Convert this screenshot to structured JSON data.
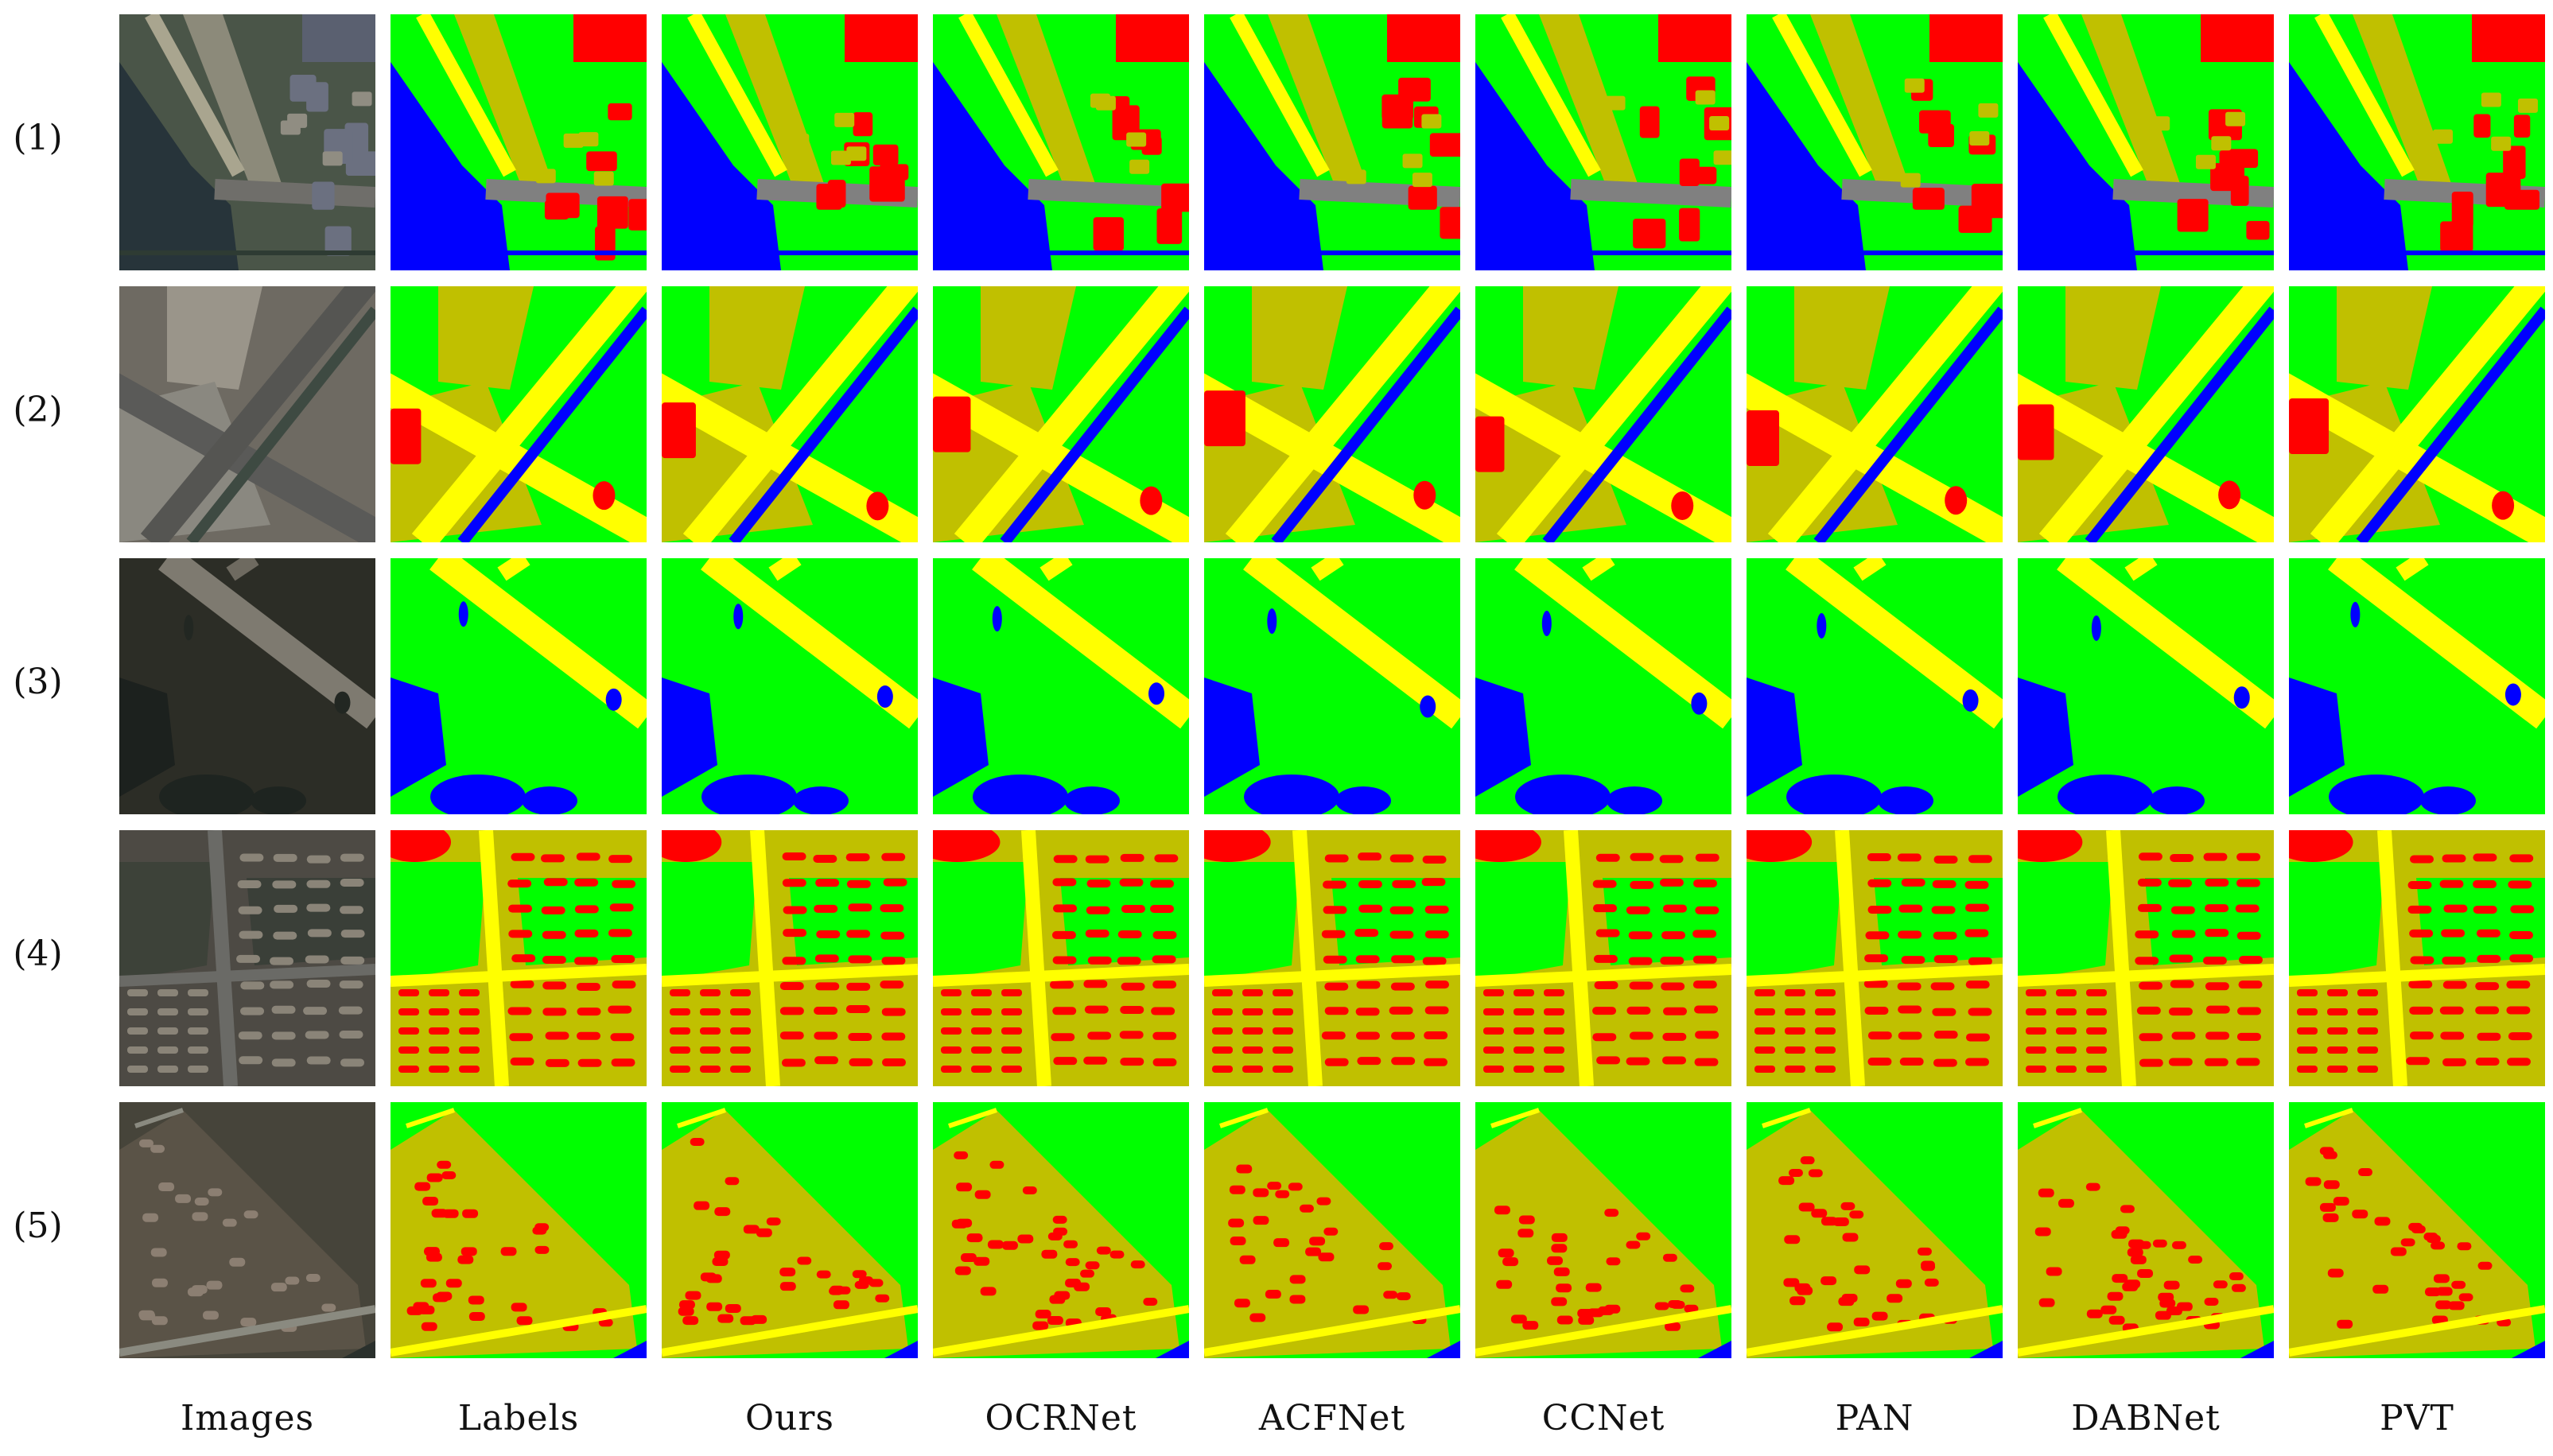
{
  "figure": {
    "row_labels": [
      "(1)",
      "(2)",
      "(3)",
      "(4)",
      "(5)"
    ],
    "column_labels": [
      "Images",
      "Labels",
      "Ours",
      "OCRNet",
      "ACFNet",
      "CCNet",
      "PAN",
      "DABNet",
      "PVT"
    ]
  },
  "palette": {
    "vegetation": "#00ff00",
    "building": "#ff0000",
    "road": "#ffff00",
    "water": "#0000ff",
    "farmland": "#c0c000",
    "other": "#808080"
  }
}
